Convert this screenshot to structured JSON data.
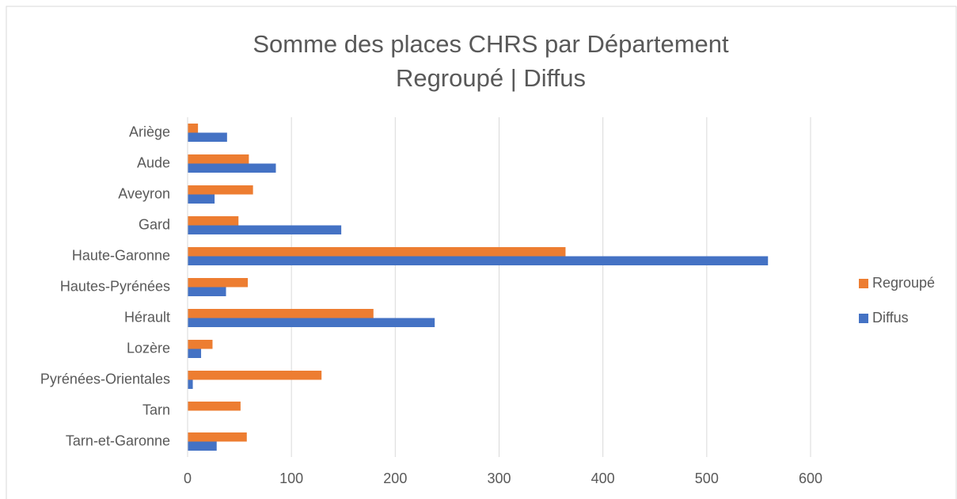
{
  "chart_data": {
    "type": "bar",
    "orientation": "horizontal",
    "title": "Somme des places CHRS par Département",
    "subtitle": "Regroupé | Diffus",
    "categories": [
      "Ariège",
      "Aude",
      "Aveyron",
      "Gard",
      "Haute-Garonne",
      "Hautes-Pyrénées",
      "Hérault",
      "Lozère",
      "Pyrénées-Orientales",
      "Tarn",
      "Tarn-et-Garonne"
    ],
    "series": [
      {
        "name": "Regroupé",
        "color": "#ed7d31",
        "values": [
          10,
          59,
          63,
          49,
          364,
          58,
          179,
          24,
          129,
          51,
          57
        ]
      },
      {
        "name": "Diffus",
        "color": "#4472c4",
        "values": [
          38,
          85,
          26,
          148,
          559,
          37,
          238,
          13,
          5,
          0,
          28
        ]
      }
    ],
    "xlim": [
      0,
      600
    ],
    "xticks": [
      0,
      100,
      200,
      300,
      400,
      500,
      600
    ],
    "grid": true,
    "legend": "right"
  }
}
